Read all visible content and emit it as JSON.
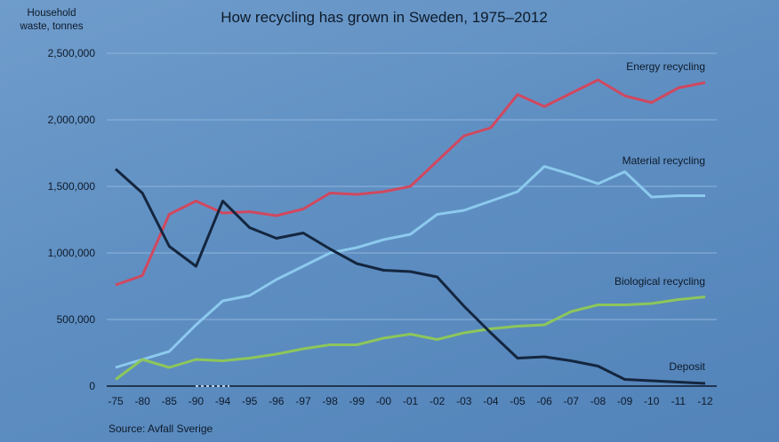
{
  "chart_data": {
    "type": "line",
    "title": "How recycling has grown in Sweden, 1975–2012",
    "ylabel_lines": [
      "Household",
      "waste, tonnes"
    ],
    "source": "Source: Avfall Sverige",
    "categories": [
      "-75",
      "-80",
      "-85",
      "-90",
      "-94",
      "-95",
      "-96",
      "-97",
      "-98",
      "-99",
      "-00",
      "-01",
      "-02",
      "-03",
      "-04",
      "-05",
      "-06",
      "-07",
      "-08",
      "-09",
      "-10",
      "-11",
      "-12"
    ],
    "yticks": [
      "0",
      "500,000",
      "1,000,000",
      "1,500,000",
      "2,000,000",
      "2,500,000"
    ],
    "ylim": [
      0,
      2500000
    ],
    "grid": true,
    "series": [
      {
        "name": "Energy recycling",
        "color": "#d0485f",
        "values": [
          760000,
          830000,
          1290000,
          1390000,
          1300000,
          1310000,
          1280000,
          1330000,
          1450000,
          1440000,
          1460000,
          1500000,
          1690000,
          1880000,
          1940000,
          2190000,
          2100000,
          2200000,
          2300000,
          2180000,
          2130000,
          2240000,
          2280000
        ]
      },
      {
        "name": "Material recycling",
        "color": "#8cc9ee",
        "values": [
          140000,
          200000,
          260000,
          460000,
          640000,
          680000,
          800000,
          900000,
          1000000,
          1040000,
          1100000,
          1140000,
          1290000,
          1320000,
          1390000,
          1460000,
          1650000,
          1590000,
          1520000,
          1610000,
          1420000,
          1430000,
          1430000
        ]
      },
      {
        "name": "Biological recycling",
        "color": "#8dc65b",
        "values": [
          50000,
          200000,
          140000,
          200000,
          190000,
          210000,
          240000,
          280000,
          310000,
          310000,
          360000,
          390000,
          350000,
          400000,
          430000,
          450000,
          460000,
          560000,
          610000,
          610000,
          620000,
          650000,
          670000
        ]
      },
      {
        "name": "Deposit",
        "color": "#14263f",
        "values": [
          1630000,
          1450000,
          1050000,
          900000,
          1390000,
          1190000,
          1110000,
          1150000,
          1030000,
          920000,
          870000,
          860000,
          820000,
          600000,
          400000,
          210000,
          220000,
          190000,
          150000,
          50000,
          40000,
          30000,
          20000
        ]
      }
    ]
  }
}
